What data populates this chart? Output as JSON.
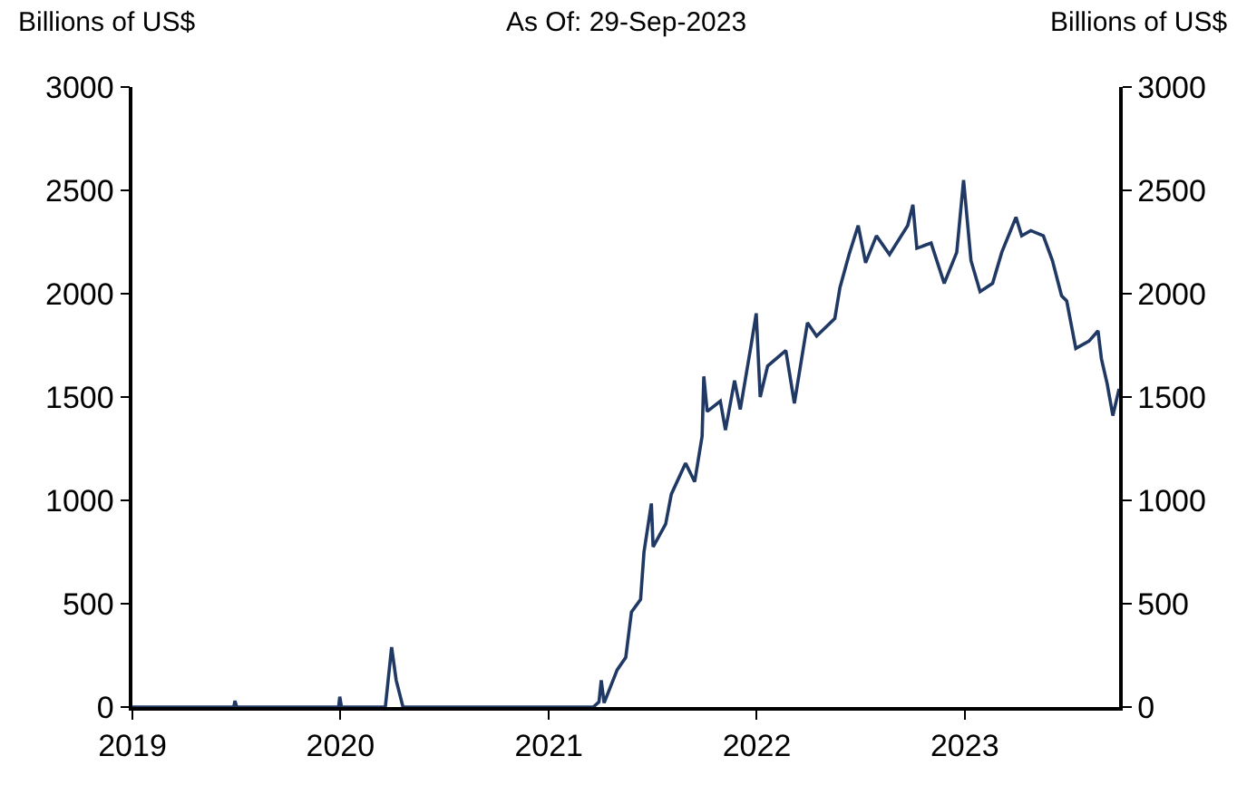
{
  "chart_data": {
    "type": "line",
    "title": "As Of: 29-Sep-2023",
    "ylabel": "Billions of US$",
    "y2label": "Billions of US$",
    "x": [
      "2019-01-01",
      "2019-06-28",
      "2019-06-30",
      "2019-07-03",
      "2019-12-29",
      "2019-12-31",
      "2020-01-03",
      "2020-03-20",
      "2020-03-31",
      "2020-04-08",
      "2020-04-20",
      "2021-03-20",
      "2021-03-30",
      "2021-04-03",
      "2021-04-08",
      "2021-05-01",
      "2021-05-16",
      "2021-05-26",
      "2021-06-11",
      "2021-06-17",
      "2021-06-30",
      "2021-07-03",
      "2021-07-25",
      "2021-08-04",
      "2021-08-29",
      "2021-09-14",
      "2021-09-27",
      "2021-09-30",
      "2021-10-06",
      "2021-10-29",
      "2021-11-07",
      "2021-11-23",
      "2021-12-03",
      "2021-12-22",
      "2021-12-31",
      "2022-01-07",
      "2022-01-20",
      "2022-02-21",
      "2022-03-08",
      "2022-03-31",
      "2022-04-16",
      "2022-05-18",
      "2022-05-27",
      "2022-06-12",
      "2022-06-28",
      "2022-07-11",
      "2022-07-30",
      "2022-08-22",
      "2022-09-23",
      "2022-10-02",
      "2022-10-09",
      "2022-11-03",
      "2022-11-26",
      "2022-12-18",
      "2022-12-30",
      "2023-01-12",
      "2023-01-28",
      "2023-02-19",
      "2023-03-07",
      "2023-04-01",
      "2023-04-11",
      "2023-04-27",
      "2023-05-19",
      "2023-06-04",
      "2023-06-20",
      "2023-06-29",
      "2023-07-15",
      "2023-08-07",
      "2023-08-23",
      "2023-08-29",
      "2023-09-08",
      "2023-09-18",
      "2023-09-29"
    ],
    "series": [
      {
        "color": "#1f3864",
        "values": [
          0,
          0,
          30,
          0,
          0,
          50,
          0,
          0,
          290,
          130,
          0,
          0,
          25,
          130,
          20,
          180,
          240,
          460,
          520,
          750,
          985,
          775,
          885,
          1030,
          1180,
          1090,
          1310,
          1600,
          1430,
          1480,
          1340,
          1580,
          1440,
          1750,
          1905,
          1500,
          1650,
          1725,
          1470,
          1860,
          1795,
          1880,
          2030,
          2190,
          2330,
          2150,
          2280,
          2190,
          2330,
          2430,
          2220,
          2245,
          2050,
          2200,
          2550,
          2160,
          2010,
          2050,
          2200,
          2370,
          2280,
          2305,
          2280,
          2160,
          1990,
          1965,
          1735,
          1770,
          1820,
          1685,
          1565,
          1410,
          1540
        ]
      }
    ],
    "xlim": [
      "2019-01-01",
      "2023-09-29"
    ],
    "xticks": [
      "2019",
      "2020",
      "2021",
      "2022",
      "2023"
    ],
    "ylim": [
      0,
      3000
    ],
    "yticks": [
      0,
      500,
      1000,
      1500,
      2000,
      2500,
      3000
    ],
    "y2lim": [
      0,
      3000
    ],
    "y2ticks": [
      0,
      500,
      1000,
      1500,
      2000,
      2500,
      3000
    ],
    "marker": "none",
    "line_style": "solid"
  }
}
